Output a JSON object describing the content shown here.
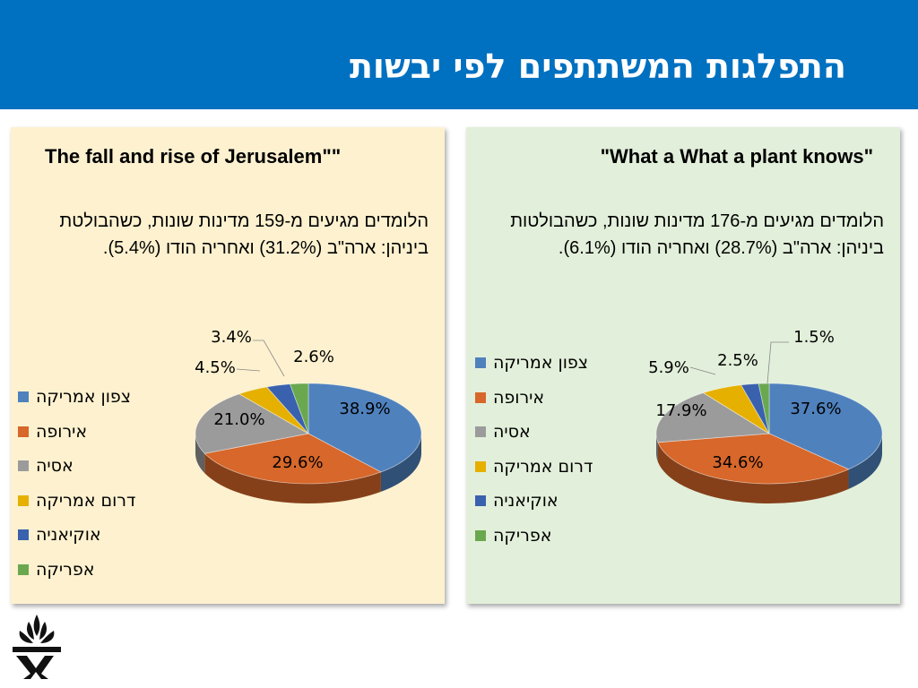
{
  "header": {
    "title": "התפלגות המשתתפים לפי יבשות"
  },
  "legend_labels": [
    "צפון אמריקה",
    "אירופה",
    "אסיה",
    "דרום אמריקה",
    "אוקיאניה",
    "אפריקה"
  ],
  "colors": [
    "#4f81bd",
    "#d7672a",
    "#9b9b9b",
    "#e5b000",
    "#3a61ad",
    "#6aa84f"
  ],
  "panels": {
    "left": {
      "title": "The fall and rise of Jerusalem\"\"",
      "description": "הלומדים מגיעים מ-159 מדינות שונות, כשהבולטת ביניהן: ארה\"ב (31.2%) ואחריה הודו (5.4%)."
    },
    "right": {
      "title": "\"What a What a plant knows\"",
      "description": "הלומדים מגיעים מ-176 מדינות שונות, כשהבולטות ביניהן: ארה\"ב (28.7%) ואחריה הודו (6.1%)."
    }
  },
  "chart_data": [
    {
      "type": "pie",
      "title": "The fall and rise of Jerusalem\"\"",
      "categories": [
        "צפון אמריקה",
        "אירופה",
        "אסיה",
        "דרום אמריקה",
        "אוקיאניה",
        "אפריקה"
      ],
      "values": [
        38.9,
        29.6,
        21.0,
        4.5,
        3.4,
        2.6
      ],
      "labels": [
        "38.9%",
        "29.6%",
        "21.0%",
        "4.5%",
        "3.4%",
        "2.6%"
      ],
      "legend": "left"
    },
    {
      "type": "pie",
      "title": "\"What a What a plant knows\"",
      "categories": [
        "צפון אמריקה",
        "אירופה",
        "אסיה",
        "דרום אמריקה",
        "אוקיאניה",
        "אפריקה"
      ],
      "values": [
        37.6,
        34.6,
        17.9,
        5.9,
        2.5,
        1.5
      ],
      "labels": [
        "37.6%",
        "34.6%",
        "17.9%",
        "5.9%",
        "2.5%",
        "1.5%"
      ],
      "legend": "left"
    }
  ]
}
